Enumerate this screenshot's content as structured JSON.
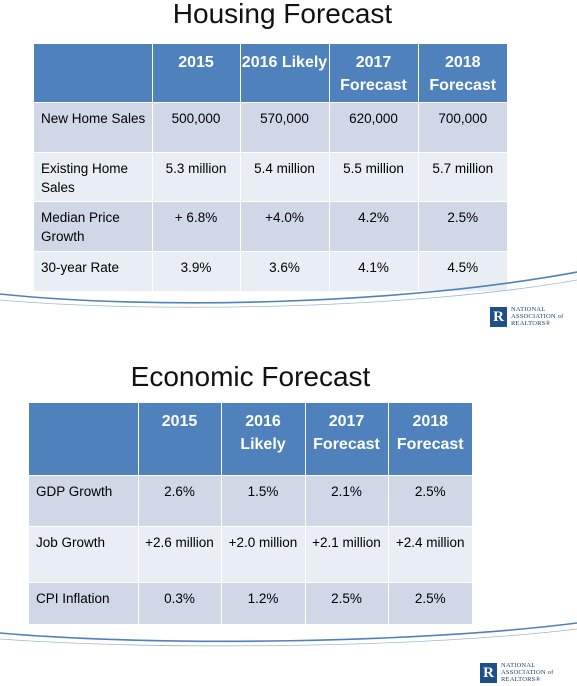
{
  "housing": {
    "title": "Housing Forecast",
    "headers": [
      "2015",
      "2016 Likely",
      "2017 Forecast",
      "2018 Forecast"
    ],
    "rows": [
      {
        "label": "New Home Sales",
        "values": [
          "500,000",
          "570,000",
          "620,000",
          "700,000"
        ]
      },
      {
        "label": "Existing Home Sales",
        "values": [
          "5.3 million",
          "5.4 million",
          "5.5 million",
          "5.7 million"
        ]
      },
      {
        "label": "Median Price Growth",
        "values": [
          "+ 6.8%",
          "+4.0%",
          "4.2%",
          "2.5%"
        ]
      },
      {
        "label": "30-year Rate",
        "values": [
          "3.9%",
          "3.6%",
          "4.1%",
          "4.5%"
        ]
      }
    ]
  },
  "economic": {
    "title": "Economic Forecast",
    "headers": [
      "2015",
      "2016 Likely",
      "2017 Forecast",
      "2018 Forecast"
    ],
    "rows": [
      {
        "label": "GDP Growth",
        "values": [
          "2.6%",
          "1.5%",
          "2.1%",
          "2.5%"
        ]
      },
      {
        "label": "Job Growth",
        "values": [
          "+2.6 million",
          "+2.0 million",
          "+2.1 million",
          "+2.4 million"
        ]
      },
      {
        "label": "CPI Inflation",
        "values": [
          "0.3%",
          "1.2%",
          "2.5%",
          "2.5%"
        ]
      }
    ]
  },
  "logo": {
    "mark": "R",
    "lines": [
      "NATIONAL",
      "ASSOCIATION of",
      "REALTORS®"
    ]
  },
  "colors": {
    "header": "#4f81bd",
    "row_odd": "#d0d8e8",
    "row_even": "#e9edf4",
    "curve": "#4f81bd"
  }
}
